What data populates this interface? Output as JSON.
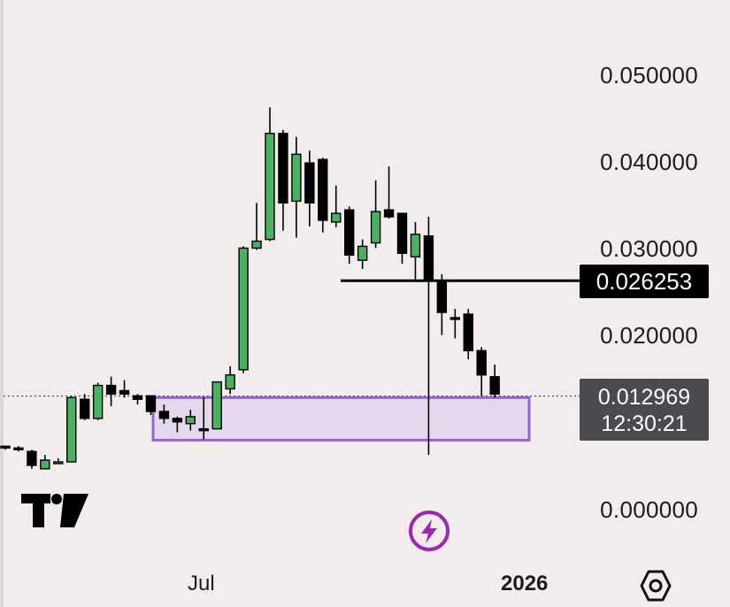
{
  "chart_data": {
    "type": "candlestick",
    "y_ticks": [
      "0.050000",
      "0.040000",
      "0.030000",
      "0.020000",
      "0.000000"
    ],
    "x_ticks": [
      "Jul",
      "2026"
    ],
    "ylim": [
      0,
      0.05
    ],
    "candles": [
      {
        "o": 0.0072,
        "h": 0.0072,
        "l": 0.0068,
        "c": 0.007
      },
      {
        "o": 0.007,
        "h": 0.0072,
        "l": 0.0066,
        "c": 0.0068
      },
      {
        "o": 0.0066,
        "h": 0.0068,
        "l": 0.0046,
        "c": 0.005
      },
      {
        "o": 0.0046,
        "h": 0.0062,
        "l": 0.0046,
        "c": 0.0056
      },
      {
        "o": 0.0054,
        "h": 0.0058,
        "l": 0.0052,
        "c": 0.0054
      },
      {
        "o": 0.0054,
        "h": 0.013,
        "l": 0.0054,
        "c": 0.0128
      },
      {
        "o": 0.0126,
        "h": 0.0132,
        "l": 0.0102,
        "c": 0.0104
      },
      {
        "o": 0.0104,
        "h": 0.0145,
        "l": 0.0102,
        "c": 0.0142
      },
      {
        "o": 0.0142,
        "h": 0.0152,
        "l": 0.0118,
        "c": 0.0132
      },
      {
        "o": 0.0136,
        "h": 0.0148,
        "l": 0.0128,
        "c": 0.0132
      },
      {
        "o": 0.013,
        "h": 0.0132,
        "l": 0.012,
        "c": 0.0126
      },
      {
        "o": 0.013,
        "h": 0.013,
        "l": 0.0108,
        "c": 0.0112
      },
      {
        "o": 0.0112,
        "h": 0.012,
        "l": 0.0098,
        "c": 0.0104
      },
      {
        "o": 0.0104,
        "h": 0.0106,
        "l": 0.0088,
        "c": 0.01
      },
      {
        "o": 0.0098,
        "h": 0.0114,
        "l": 0.009,
        "c": 0.0106
      },
      {
        "o": 0.0092,
        "h": 0.0128,
        "l": 0.008,
        "c": 0.009
      },
      {
        "o": 0.0092,
        "h": 0.0144,
        "l": 0.0092,
        "c": 0.0146
      },
      {
        "o": 0.0138,
        "h": 0.0164,
        "l": 0.0132,
        "c": 0.0154
      },
      {
        "o": 0.016,
        "h": 0.0302,
        "l": 0.0156,
        "c": 0.03
      },
      {
        "o": 0.03,
        "h": 0.0352,
        "l": 0.0298,
        "c": 0.0308
      },
      {
        "o": 0.031,
        "h": 0.0462,
        "l": 0.0308,
        "c": 0.0432
      },
      {
        "o": 0.0432,
        "h": 0.0436,
        "l": 0.032,
        "c": 0.0352
      },
      {
        "o": 0.0354,
        "h": 0.0428,
        "l": 0.0312,
        "c": 0.0408
      },
      {
        "o": 0.0398,
        "h": 0.0412,
        "l": 0.0325,
        "c": 0.0352
      },
      {
        "o": 0.0402,
        "h": 0.0404,
        "l": 0.0318,
        "c": 0.0332
      },
      {
        "o": 0.033,
        "h": 0.0372,
        "l": 0.0324,
        "c": 0.034
      },
      {
        "o": 0.0344,
        "h": 0.0348,
        "l": 0.0282,
        "c": 0.0292
      },
      {
        "o": 0.0286,
        "h": 0.031,
        "l": 0.0276,
        "c": 0.0302
      },
      {
        "o": 0.0306,
        "h": 0.0378,
        "l": 0.03,
        "c": 0.0342
      },
      {
        "o": 0.0344,
        "h": 0.0394,
        "l": 0.0334,
        "c": 0.0336
      },
      {
        "o": 0.034,
        "h": 0.034,
        "l": 0.0282,
        "c": 0.0294
      },
      {
        "o": 0.029,
        "h": 0.033,
        "l": 0.0264,
        "c": 0.0316
      },
      {
        "o": 0.0314,
        "h": 0.0336,
        "l": 0.0062,
        "c": 0.0262
      },
      {
        "o": 0.0262,
        "h": 0.027,
        "l": 0.02,
        "c": 0.0226
      },
      {
        "o": 0.022,
        "h": 0.023,
        "l": 0.0196,
        "c": 0.0218
      },
      {
        "o": 0.0224,
        "h": 0.023,
        "l": 0.0172,
        "c": 0.0182
      },
      {
        "o": 0.0182,
        "h": 0.0186,
        "l": 0.013,
        "c": 0.0154
      },
      {
        "o": 0.0152,
        "h": 0.0166,
        "l": 0.0128,
        "c": 0.0132
      }
    ],
    "colors": {
      "up": "#4caf63",
      "down": "#000000",
      "zone_stroke": "#9466cc",
      "zone_fill": "#e4d9ec"
    },
    "horizontal_line": 0.026253,
    "current_price": 0.012969,
    "support_zone": {
      "low": 0.0079,
      "high": 0.0128
    }
  },
  "labels": {
    "last_price_marker": "0.026253",
    "current_price": "0.012969",
    "countdown": "12:30:21"
  },
  "icons": {
    "logo": "tradingview-logo",
    "flash": "lightning-icon",
    "settings": "settings-icon"
  }
}
